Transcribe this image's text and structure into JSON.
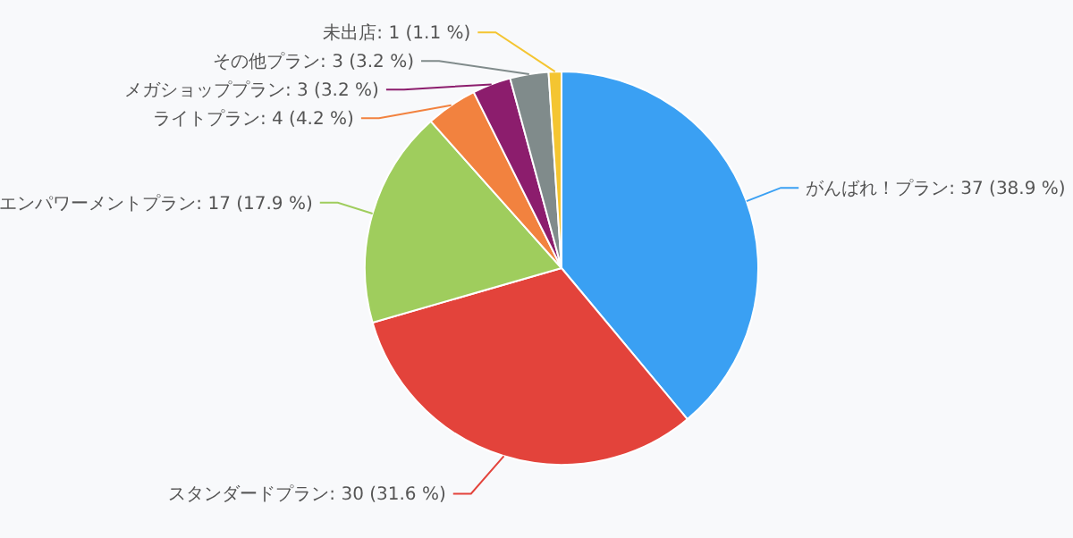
{
  "chart_data": {
    "type": "pie",
    "categories": [
      "がんばれ！プラン",
      "スタンダードプラン",
      "エンパワーメントプラン",
      "ライトプラン",
      "メガショッププラン",
      "その他プラン",
      "未出店"
    ],
    "values": [
      37,
      30,
      17,
      4,
      3,
      3,
      1
    ],
    "colors": [
      "#3aa0f3",
      "#e3433b",
      "#9fcd5d",
      "#f2823f",
      "#8c1d6d",
      "#808b8b",
      "#f4c531"
    ],
    "value_labels": [
      "37 (38.9 %)",
      "30 (31.6 %)",
      "17 (17.9 %)",
      "4 (4.2 %)",
      "3 (3.2 %)",
      "3 (3.2 %)",
      "1 (1.1 %)"
    ]
  }
}
